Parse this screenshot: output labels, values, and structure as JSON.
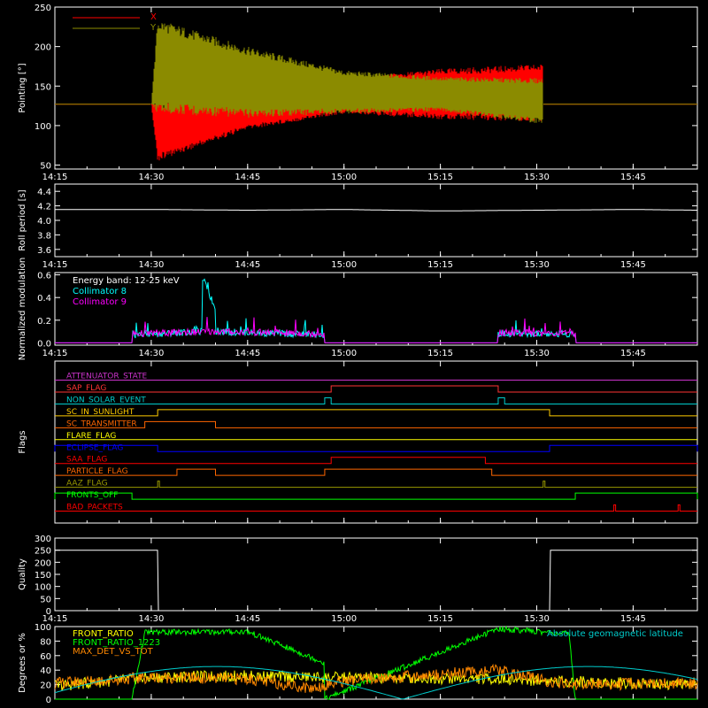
{
  "chart_data": [
    {
      "type": "line",
      "ylabel": "Pointing [°]",
      "ylim": [
        45,
        250
      ],
      "yticks": [
        "50",
        "100",
        "150",
        "200",
        "250"
      ],
      "xticks": [
        "14:15",
        "14:30",
        "14:45",
        "15:00",
        "15:15",
        "15:30",
        "15:45"
      ],
      "show_xticklabels": true,
      "series": [
        {
          "name": "X",
          "color": "#ff0000",
          "x": [
            "14:15",
            "14:30",
            "14:31",
            "14:45",
            "15:00",
            "15:15",
            "15:31",
            "15:31",
            "15:55"
          ],
          "min": [
            127,
            127,
            55,
            95,
            115,
            108,
            105,
            127,
            127
          ],
          "max": [
            127,
            127,
            130,
            145,
            160,
            172,
            178,
            127,
            127
          ]
        },
        {
          "name": "Y",
          "color": "#8b8b00",
          "x": [
            "14:15",
            "14:30",
            "14:31",
            "14:45",
            "15:00",
            "15:15",
            "15:31",
            "15:31",
            "15:55"
          ],
          "min": [
            127,
            127,
            115,
            110,
            115,
            118,
            102,
            127,
            127
          ],
          "max": [
            127,
            127,
            235,
            200,
            170,
            162,
            160,
            127,
            127
          ]
        }
      ]
    },
    {
      "type": "line",
      "ylabel": "Roll period [s]",
      "ylim": [
        3.5,
        4.5
      ],
      "yticks": [
        "3.6",
        "3.8",
        "4.0",
        "4.2",
        "4.4"
      ],
      "xticks": [
        "14:15",
        "14:30",
        "14:45",
        "15:00",
        "15:15",
        "15:30",
        "15:45"
      ],
      "show_xticklabels": true,
      "series": [
        {
          "name": "roll period",
          "color": "#ffffff",
          "x": [
            "14:15",
            "14:30",
            "14:45",
            "15:00",
            "15:15",
            "15:30",
            "15:45",
            "15:55"
          ],
          "y": [
            4.15,
            4.15,
            4.14,
            4.15,
            4.13,
            4.14,
            4.15,
            4.14
          ]
        }
      ]
    },
    {
      "type": "line",
      "ylabel": "Normalized modulation",
      "ylim": [
        -0.02,
        0.62
      ],
      "yticks": [
        "0.0",
        "0.2",
        "0.4",
        "0.6"
      ],
      "xticks": [
        "14:15",
        "14:30",
        "14:45",
        "15:00",
        "15:15",
        "15:30",
        "15:45"
      ],
      "show_xticklabels": true,
      "annotation": "Energy band: 12-25 keV",
      "series": [
        {
          "name": "Collimator 8",
          "color": "#00ffff",
          "x": [
            "14:27",
            "14:27",
            "14:38",
            "14:38",
            "14:40",
            "14:40",
            "14:57",
            "14:57",
            "15:24",
            "15:24",
            "15:36",
            "15:36"
          ],
          "y": [
            0,
            0.07,
            0.1,
            0.57,
            0.3,
            0.1,
            0.07,
            0,
            0,
            0.08,
            0.08,
            0
          ]
        },
        {
          "name": "Collimator 9",
          "color": "#ff00ff",
          "x": [
            "14:27",
            "14:27",
            "14:40",
            "14:57",
            "14:57",
            "15:24",
            "15:24",
            "15:36",
            "15:36"
          ],
          "y": [
            0,
            0.08,
            0.1,
            0.08,
            0,
            0,
            0.09,
            0.08,
            0
          ]
        }
      ]
    },
    {
      "type": "line",
      "ylabel": "Flags",
      "xticks": [
        "14:15",
        "14:30",
        "14:45",
        "15:00",
        "15:15",
        "15:30",
        "15:45"
      ],
      "show_xticklabels": false,
      "flags": [
        {
          "name": "ATTENUATOR_STATE",
          "color": "#cc33cc",
          "on": []
        },
        {
          "name": "SAP_FLAG",
          "color": "#ff3333",
          "on": [
            [
              "14:58",
              "15:24"
            ]
          ]
        },
        {
          "name": "NON_SOLAR_EVENT",
          "color": "#00cccc",
          "on": [
            [
              "14:57",
              "14:58"
            ],
            [
              "15:24",
              "15:25"
            ]
          ]
        },
        {
          "name": "SC_IN_SUNLIGHT",
          "color": "#ffcc00",
          "on": [
            [
              "14:31",
              "15:32"
            ]
          ]
        },
        {
          "name": "SC_TRANSMITTER",
          "color": "#ff6600",
          "on": [
            [
              "14:29",
              "14:40"
            ]
          ]
        },
        {
          "name": "FLARE_FLAG",
          "color": "#ffff00",
          "on": []
        },
        {
          "name": "ECLIPSE_FLAG",
          "color": "#0000ff",
          "on": [
            [
              "14:15",
              "14:31"
            ],
            [
              "15:32",
              "15:55"
            ]
          ]
        },
        {
          "name": "SAA_FLAG",
          "color": "#ff0000",
          "on": [
            [
              "14:58",
              "15:22"
            ]
          ]
        },
        {
          "name": "PARTICLE_FLAG",
          "color": "#ff6600",
          "on": [
            [
              "14:34",
              "14:40"
            ],
            [
              "14:57",
              "15:23"
            ]
          ]
        },
        {
          "name": "AAZ_FLAG",
          "color": "#999900",
          "on": [
            [
              "14:31",
              "14:31"
            ],
            [
              "15:31",
              "15:31"
            ]
          ]
        },
        {
          "name": "FRONTS_OFF",
          "color": "#00ff00",
          "on": [
            [
              "14:15",
              "14:27"
            ],
            [
              "15:36",
              "15:55"
            ]
          ]
        },
        {
          "name": "BAD_PACKETS",
          "color": "#ff0000",
          "on": [
            [
              "15:42",
              "15:42"
            ],
            [
              "15:52",
              "15:52"
            ]
          ]
        }
      ]
    },
    {
      "type": "line",
      "ylabel": "Quality",
      "ylim": [
        0,
        300
      ],
      "yticks": [
        "0",
        "50",
        "100",
        "150",
        "200",
        "250",
        "300"
      ],
      "xticks": [
        "14:15",
        "14:30",
        "14:45",
        "15:00",
        "15:15",
        "15:30",
        "15:45"
      ],
      "show_xticklabels": true,
      "series": [
        {
          "name": "quality",
          "color": "#ffffff",
          "x": [
            "14:15",
            "14:31",
            "14:31",
            "15:32",
            "15:32",
            "15:55"
          ],
          "y": [
            250,
            250,
            0,
            0,
            250,
            250
          ]
        }
      ]
    },
    {
      "type": "line",
      "ylabel": "Degrees or %",
      "ylim": [
        0,
        100
      ],
      "yticks": [
        "0",
        "20",
        "40",
        "60",
        "80",
        "100"
      ],
      "xticks": [
        "14:15",
        "14:30",
        "14:45",
        "15:00",
        "15:15",
        "15:30",
        "15:45"
      ],
      "show_xticklabels": false,
      "annotation": "Absolute geomagnetic latitude",
      "series": [
        {
          "name": "FRONT_RATIO",
          "color": "#ffff00",
          "x": [
            "14:15",
            "14:30",
            "14:45",
            "14:57",
            "15:24",
            "15:33",
            "15:55"
          ],
          "y": [
            18,
            30,
            32,
            30,
            28,
            25,
            20
          ]
        },
        {
          "name": "FRONT_RATIO_1223",
          "color": "#00ff00",
          "x": [
            "14:15",
            "14:27",
            "14:29",
            "14:45",
            "14:57",
            "14:57",
            "15:24",
            "15:35",
            "15:36",
            "15:55"
          ],
          "y": [
            0,
            0,
            92,
            93,
            50,
            0,
            97,
            90,
            0,
            0
          ]
        },
        {
          "name": "MAX_DET_VS_TOT",
          "color": "#ff8800",
          "x": [
            "14:15",
            "14:30",
            "14:45",
            "14:55",
            "15:00",
            "15:24",
            "15:33",
            "15:35",
            "15:55"
          ],
          "y": [
            22,
            30,
            28,
            15,
            25,
            40,
            22,
            20,
            22
          ]
        }
      ]
    }
  ]
}
